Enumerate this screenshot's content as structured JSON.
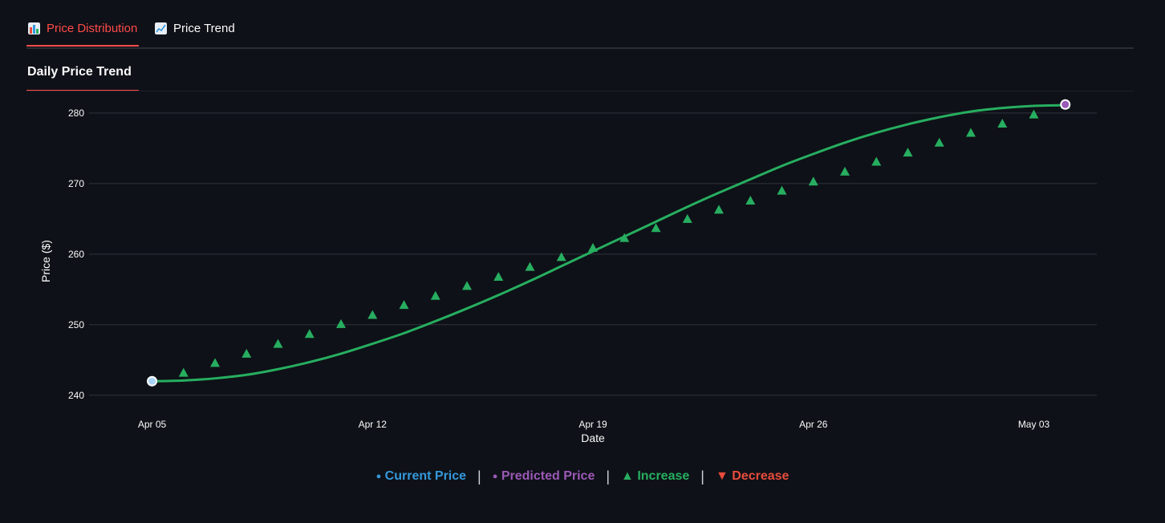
{
  "tabs": [
    {
      "label": "Price Distribution",
      "active": true,
      "icon": "bar-chart-icon"
    },
    {
      "label": "Price Trend",
      "active": false,
      "icon": "line-chart-icon"
    }
  ],
  "subheader": {
    "title": "Daily Price Trend"
  },
  "legend": {
    "current": "Current Price",
    "predicted": "Predicted Price",
    "increase": "Increase",
    "decrease": "Decrease",
    "separator": "|",
    "current_symbol": "●",
    "predicted_symbol": "●",
    "increase_symbol": "▲",
    "decrease_symbol": "▼"
  },
  "colors": {
    "line": "#27ae60",
    "increase": "#27ae60",
    "decrease": "#e74c3c",
    "current": "#3498db",
    "predicted": "#9b59b6",
    "accent": "#ff4b4b"
  },
  "chart_data": {
    "type": "line",
    "title": "",
    "xlabel": "Date",
    "ylabel": "Price ($)",
    "ylim": [
      238.5,
      281.8
    ],
    "yticks": [
      240,
      250,
      260,
      270,
      280
    ],
    "xticks": [
      {
        "date": "2025-04-05",
        "label": "Apr 05"
      },
      {
        "date": "2025-04-12",
        "label": "Apr 12"
      },
      {
        "date": "2025-04-19",
        "label": "Apr 19"
      },
      {
        "date": "2025-04-26",
        "label": "Apr 26"
      },
      {
        "date": "2025-05-03",
        "label": "May 03"
      }
    ],
    "x_range": [
      "2025-04-03",
      "2025-05-05"
    ],
    "grid": true,
    "legend_position": "bottom-center",
    "trend_line": {
      "dates": [
        "2025-04-05",
        "2025-04-06",
        "2025-04-07",
        "2025-04-08",
        "2025-04-09",
        "2025-04-10",
        "2025-04-11",
        "2025-04-12",
        "2025-04-13",
        "2025-04-14",
        "2025-04-15",
        "2025-04-16",
        "2025-04-17",
        "2025-04-18",
        "2025-04-19",
        "2025-04-20",
        "2025-04-21",
        "2025-04-22",
        "2025-04-23",
        "2025-04-24",
        "2025-04-25",
        "2025-04-26",
        "2025-04-27",
        "2025-04-28",
        "2025-04-29",
        "2025-04-30",
        "2025-05-01",
        "2025-05-02",
        "2025-05-03",
        "2025-05-04"
      ],
      "values": [
        242.0,
        242.1,
        242.4,
        242.9,
        243.7,
        244.7,
        245.9,
        247.3,
        248.8,
        250.5,
        252.3,
        254.2,
        256.2,
        258.3,
        260.4,
        262.5,
        264.6,
        266.7,
        268.7,
        270.6,
        272.5,
        274.2,
        275.8,
        277.2,
        278.4,
        279.4,
        280.2,
        280.7,
        281.0,
        281.1
      ]
    },
    "increase_markers": {
      "dates": [
        "2025-04-06",
        "2025-04-07",
        "2025-04-08",
        "2025-04-09",
        "2025-04-10",
        "2025-04-11",
        "2025-04-12",
        "2025-04-13",
        "2025-04-14",
        "2025-04-15",
        "2025-04-16",
        "2025-04-17",
        "2025-04-18",
        "2025-04-19",
        "2025-04-20",
        "2025-04-21",
        "2025-04-22",
        "2025-04-23",
        "2025-04-24",
        "2025-04-25",
        "2025-04-26",
        "2025-04-27",
        "2025-04-28",
        "2025-04-29",
        "2025-04-30",
        "2025-05-01",
        "2025-05-02",
        "2025-05-03",
        "2025-05-04"
      ],
      "values": [
        243.2,
        244.6,
        245.9,
        247.3,
        248.7,
        250.1,
        251.4,
        252.8,
        254.1,
        255.5,
        256.8,
        258.2,
        259.6,
        260.9,
        262.3,
        263.7,
        265.0,
        266.3,
        267.6,
        269.0,
        270.3,
        271.7,
        273.1,
        274.4,
        275.8,
        277.2,
        278.5,
        279.8,
        281.2
      ]
    },
    "current_point": {
      "date": "2025-04-05",
      "value": 242.0
    },
    "predicted_point": {
      "date": "2025-05-04",
      "value": 281.2
    }
  }
}
